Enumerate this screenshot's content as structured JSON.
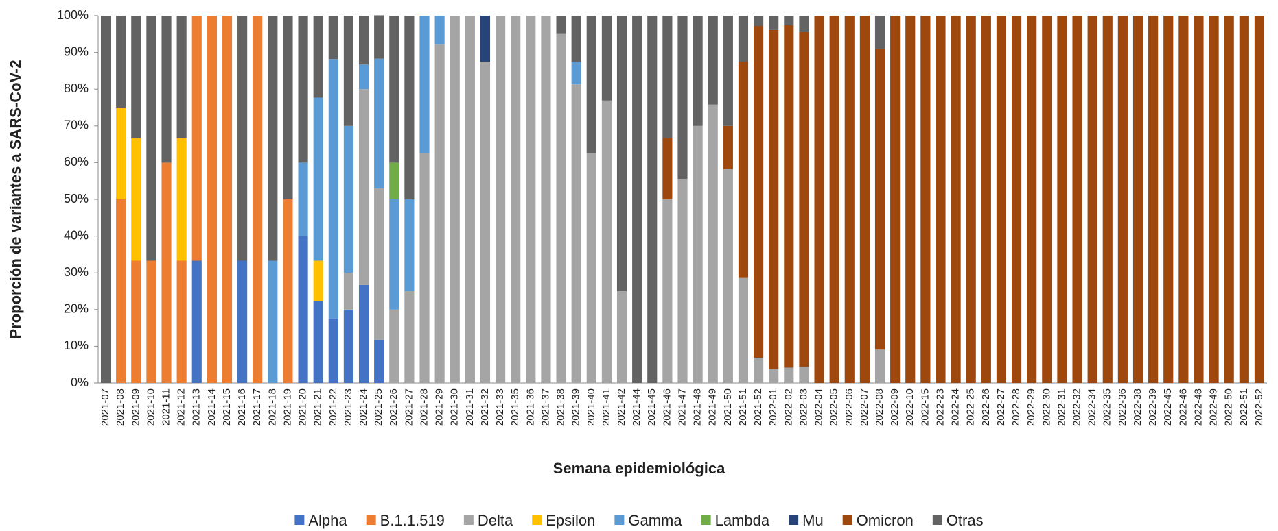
{
  "chart_data": {
    "type": "stacked_bar",
    "y_label": "Proporción de variantes a SARS-CoV-2",
    "x_label": "Semana epidemiológica",
    "categories": [
      "2021-07",
      "2021-08",
      "2021-09",
      "2021-10",
      "2021-11",
      "2021-12",
      "2021-13",
      "2021-14",
      "2021-15",
      "2021-16",
      "2021-17",
      "2021-18",
      "2021-19",
      "2021-20",
      "2021-21",
      "2021-22",
      "2021-23",
      "2021-24",
      "2021-25",
      "2021-26",
      "2021-27",
      "2021-28",
      "2021-29",
      "2021-30",
      "2021-31",
      "2021-32",
      "2021-33",
      "2021-35",
      "2021-36",
      "2021-37",
      "2021-38",
      "2021-39",
      "2021-40",
      "2021-41",
      "2021-42",
      "2021-44",
      "2021-45",
      "2021-46",
      "2021-47",
      "2021-48",
      "2021-49",
      "2021-50",
      "2021-51",
      "2021-52",
      "2022-01",
      "2022-02",
      "2022-03",
      "2022-04",
      "2022-05",
      "2022-06",
      "2022-07",
      "2022-08",
      "2022-09",
      "2022-10",
      "2022-15",
      "2022-23",
      "2022-24",
      "2022-25",
      "2022-26",
      "2022-27",
      "2022-28",
      "2022-29",
      "2022-30",
      "2022-31",
      "2022-32",
      "2022-34",
      "2022-35",
      "2022-36",
      "2022-38",
      "2022-39",
      "2022-45",
      "2022-46",
      "2022-48",
      "2022-49",
      "2022-50",
      "2022-51",
      "2022-52"
    ],
    "series": [
      {
        "name": "Alpha",
        "color": "#4472c4",
        "values": [
          0,
          0,
          0,
          0,
          0,
          0,
          33.3,
          0,
          0,
          33.3,
          0,
          0,
          0,
          40,
          22.2,
          17.6,
          20,
          26.7,
          11.8,
          0,
          0,
          0,
          0,
          0,
          0,
          0,
          0,
          0,
          0,
          0,
          0,
          0,
          0,
          0,
          0,
          0,
          0,
          0,
          0,
          0,
          0,
          0,
          0,
          0,
          0,
          0,
          0,
          0,
          0,
          0,
          0,
          0,
          0,
          0,
          0,
          0,
          0,
          0,
          0,
          0,
          0,
          0,
          0,
          0,
          0,
          0,
          0,
          0,
          0,
          0,
          0,
          0,
          0,
          0,
          0,
          0,
          0
        ]
      },
      {
        "name": "B.1.1.519",
        "color": "#ed7d31",
        "values": [
          0,
          50,
          33.3,
          33.3,
          60,
          33.3,
          66.7,
          100,
          100,
          0,
          100,
          0,
          50,
          0,
          0,
          0,
          0,
          0,
          0,
          0,
          0,
          0,
          0,
          0,
          0,
          0,
          0,
          0,
          0,
          0,
          0,
          0,
          0,
          0,
          0,
          0,
          0,
          0,
          0,
          0,
          0,
          0,
          0,
          0,
          0,
          0,
          0,
          0,
          0,
          0,
          0,
          0,
          0,
          0,
          0,
          0,
          0,
          0,
          0,
          0,
          0,
          0,
          0,
          0,
          0,
          0,
          0,
          0,
          0,
          0,
          0,
          0,
          0,
          0,
          0,
          0,
          0
        ]
      },
      {
        "name": "Delta",
        "color": "#a5a5a5",
        "values": [
          0,
          0,
          0,
          0,
          0,
          0,
          0,
          0,
          0,
          0,
          0,
          0,
          0,
          0,
          0,
          0,
          10,
          53.3,
          41.2,
          20,
          25,
          62.5,
          92.3,
          100,
          100,
          87.5,
          100,
          100,
          100,
          100,
          95.2,
          81.3,
          62.5,
          76.9,
          25,
          0,
          0,
          50,
          55.6,
          70,
          75.8,
          58.3,
          28.6,
          6.9,
          3.8,
          4.2,
          4.4,
          0,
          0,
          0,
          0,
          9.1,
          0,
          0,
          0,
          0,
          0,
          0,
          0,
          0,
          0,
          0,
          0,
          0,
          0,
          0,
          0,
          0,
          0,
          0,
          0,
          0,
          0,
          0,
          0,
          0,
          0
        ]
      },
      {
        "name": "Epsilon",
        "color": "#ffc000",
        "values": [
          0,
          25,
          33.3,
          0,
          0,
          33.3,
          0,
          0,
          0,
          0,
          0,
          0,
          0,
          0,
          11.1,
          0,
          0,
          0,
          0,
          0,
          0,
          0,
          0,
          0,
          0,
          0,
          0,
          0,
          0,
          0,
          0,
          0,
          0,
          0,
          0,
          0,
          0,
          0,
          0,
          0,
          0,
          0,
          0,
          0,
          0,
          0,
          0,
          0,
          0,
          0,
          0,
          0,
          0,
          0,
          0,
          0,
          0,
          0,
          0,
          0,
          0,
          0,
          0,
          0,
          0,
          0,
          0,
          0,
          0,
          0,
          0,
          0,
          0,
          0,
          0,
          0,
          0
        ]
      },
      {
        "name": "Gamma",
        "color": "#5b9bd5",
        "values": [
          0,
          0,
          0,
          0,
          0,
          0,
          0,
          0,
          0,
          0,
          0,
          33.3,
          0,
          20,
          44.4,
          70.6,
          40,
          6.7,
          35.3,
          30,
          25,
          37.5,
          7.7,
          0,
          0,
          0,
          0,
          0,
          0,
          0,
          0,
          6.2,
          0,
          0,
          0,
          0,
          0,
          0,
          0,
          0,
          0,
          0,
          0,
          0,
          0,
          0,
          0,
          0,
          0,
          0,
          0,
          0,
          0,
          0,
          0,
          0,
          0,
          0,
          0,
          0,
          0,
          0,
          0,
          0,
          0,
          0,
          0,
          0,
          0,
          0,
          0,
          0,
          0,
          0,
          0,
          0,
          0
        ]
      },
      {
        "name": "Lambda",
        "color": "#70ad47",
        "values": [
          0,
          0,
          0,
          0,
          0,
          0,
          0,
          0,
          0,
          0,
          0,
          0,
          0,
          0,
          0,
          0,
          0,
          0,
          0,
          10,
          0,
          0,
          0,
          0,
          0,
          0,
          0,
          0,
          0,
          0,
          0,
          0,
          0,
          0,
          0,
          0,
          0,
          0,
          0,
          0,
          0,
          0,
          0,
          0,
          0,
          0,
          0,
          0,
          0,
          0,
          0,
          0,
          0,
          0,
          0,
          0,
          0,
          0,
          0,
          0,
          0,
          0,
          0,
          0,
          0,
          0,
          0,
          0,
          0,
          0,
          0,
          0,
          0,
          0,
          0,
          0,
          0
        ]
      },
      {
        "name": "Mu",
        "color": "#264478",
        "values": [
          0,
          0,
          0,
          0,
          0,
          0,
          0,
          0,
          0,
          0,
          0,
          0,
          0,
          0,
          0,
          0,
          0,
          0,
          0,
          0,
          0,
          0,
          0,
          0,
          0,
          12.5,
          0,
          0,
          0,
          0,
          0,
          0,
          0,
          0,
          0,
          0,
          0,
          0,
          0,
          0,
          0,
          0,
          0,
          0,
          0,
          0,
          0,
          0,
          0,
          0,
          0,
          0,
          0,
          0,
          0,
          0,
          0,
          0,
          0,
          0,
          0,
          0,
          0,
          0,
          0,
          0,
          0,
          0,
          0,
          0,
          0,
          0,
          0,
          0,
          0,
          0,
          0
        ]
      },
      {
        "name": "Omicron",
        "color": "#9e480e",
        "values": [
          0,
          0,
          0,
          0,
          0,
          0,
          0,
          0,
          0,
          0,
          0,
          0,
          0,
          0,
          0,
          0,
          0,
          0,
          0,
          0,
          0,
          0,
          0,
          0,
          0,
          0,
          0,
          0,
          0,
          0,
          0,
          0,
          0,
          0,
          0,
          0,
          0,
          16.7,
          0,
          0,
          0,
          11.7,
          58.9,
          90.3,
          92.3,
          93.2,
          91.2,
          100,
          100,
          100,
          100,
          81.8,
          100,
          100,
          100,
          100,
          100,
          100,
          100,
          100,
          100,
          100,
          100,
          100,
          100,
          100,
          100,
          100,
          100,
          100,
          100,
          100,
          100,
          100,
          100,
          100,
          100
        ]
      },
      {
        "name": "Otras",
        "color": "#636363",
        "values": [
          100,
          25,
          33.3,
          66.7,
          40,
          33.3,
          0,
          0,
          0,
          66.7,
          0,
          66.7,
          50,
          40,
          22.2,
          11.8,
          30,
          13.3,
          11.8,
          40,
          50,
          0,
          0,
          0,
          0,
          0,
          0,
          0,
          0,
          0,
          4.8,
          12.5,
          37.5,
          23.1,
          75,
          100,
          100,
          33.3,
          44.4,
          30,
          24.2,
          30,
          12.5,
          2.8,
          3.9,
          2.6,
          4.4,
          0,
          0,
          0,
          0,
          9.1,
          0,
          0,
          0,
          0,
          0,
          0,
          0,
          0,
          0,
          0,
          0,
          0,
          0,
          0,
          0,
          0,
          0,
          0,
          0,
          0,
          0,
          0,
          0,
          0,
          0
        ]
      }
    ],
    "ylim": [
      0,
      100
    ],
    "yticks": [
      {
        "value": 0,
        "label": "0%"
      },
      {
        "value": 10,
        "label": "10%"
      },
      {
        "value": 20,
        "label": "20%"
      },
      {
        "value": 30,
        "label": "30%"
      },
      {
        "value": 40,
        "label": "40%"
      },
      {
        "value": 50,
        "label": "50%"
      },
      {
        "value": 60,
        "label": "60%"
      },
      {
        "value": 70,
        "label": "70%"
      },
      {
        "value": 80,
        "label": "80%"
      },
      {
        "value": 90,
        "label": "90%"
      },
      {
        "value": 100,
        "label": "100%"
      }
    ],
    "legend": "bottom"
  }
}
